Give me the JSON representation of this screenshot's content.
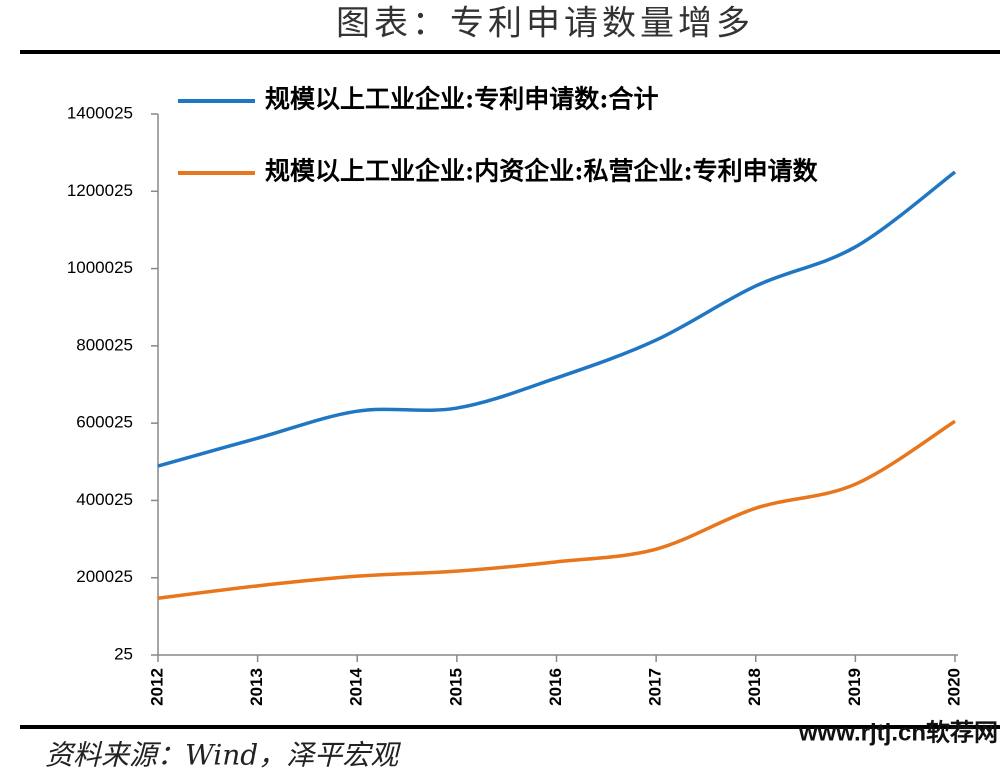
{
  "chart_data": {
    "type": "line",
    "title": "图表：专利申请数量增多",
    "source": "资料来源：Wind，泽平宏观",
    "watermark": "www.rjtj.cn软荐网",
    "categories": [
      "2012",
      "2013",
      "2014",
      "2015",
      "2016",
      "2017",
      "2018",
      "2019",
      "2020"
    ],
    "series": [
      {
        "name": "规模以上工业企业:专利申请数:合计",
        "color": "#1f77c4",
        "values": [
          489000,
          561000,
          631000,
          639000,
          717000,
          815000,
          955000,
          1056000,
          1250000
        ]
      },
      {
        "name": "规模以上工业企业:内资企业:私营企业:专利申请数",
        "color": "#e8761c",
        "values": [
          147000,
          179000,
          204000,
          217000,
          241000,
          274000,
          380000,
          442000,
          605000
        ]
      }
    ],
    "ylim": [
      25,
      1400025
    ],
    "yticks": [
      25,
      200025,
      400025,
      600025,
      800025,
      1000025,
      1200025,
      1400025
    ],
    "smooth": true,
    "grid": false
  }
}
